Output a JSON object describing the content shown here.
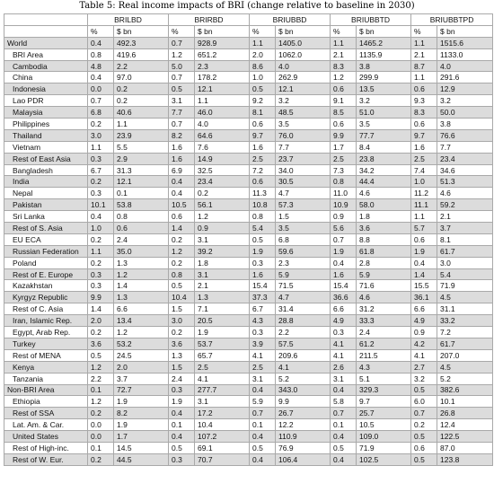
{
  "caption": "Table 5: Real income impacts of BRI (change relative to baseline in 2030)",
  "scenarios": [
    "BRILBD",
    "BRIRBD",
    "BRIUBBD",
    "BRIUBBTD",
    "BRIUBBTPD"
  ],
  "units": [
    "%",
    "$ bn"
  ],
  "rows": [
    {
      "region": "World",
      "indent": false,
      "v": [
        "0.4",
        "492.3",
        "0.7",
        "928.9",
        "1.1",
        "1405.0",
        "1.1",
        "1465.2",
        "1.1",
        "1515.6"
      ]
    },
    {
      "region": "BRI Area",
      "indent": true,
      "v": [
        "0.8",
        "419.6",
        "1.2",
        "651.2",
        "2.0",
        "1062.0",
        "2.1",
        "1135.9",
        "2.1",
        "1133.0"
      ]
    },
    {
      "region": "Cambodia",
      "indent": true,
      "v": [
        "4.8",
        "2.2",
        "5.0",
        "2.3",
        "8.6",
        "4.0",
        "8.3",
        "3.8",
        "8.7",
        "4.0"
      ]
    },
    {
      "region": "China",
      "indent": true,
      "v": [
        "0.4",
        "97.0",
        "0.7",
        "178.2",
        "1.0",
        "262.9",
        "1.2",
        "299.9",
        "1.1",
        "291.6"
      ]
    },
    {
      "region": "Indonesia",
      "indent": true,
      "v": [
        "0.0",
        "0.2",
        "0.5",
        "12.1",
        "0.5",
        "12.1",
        "0.6",
        "13.5",
        "0.6",
        "12.9"
      ]
    },
    {
      "region": "Lao PDR",
      "indent": true,
      "v": [
        "0.7",
        "0.2",
        "3.1",
        "1.1",
        "9.2",
        "3.2",
        "9.1",
        "3.2",
        "9.3",
        "3.2"
      ]
    },
    {
      "region": "Malaysia",
      "indent": true,
      "v": [
        "6.8",
        "40.6",
        "7.7",
        "46.0",
        "8.1",
        "48.5",
        "8.5",
        "51.0",
        "8.3",
        "50.0"
      ]
    },
    {
      "region": "Philippines",
      "indent": true,
      "v": [
        "0.2",
        "1.1",
        "0.7",
        "4.0",
        "0.6",
        "3.5",
        "0.6",
        "3.5",
        "0.6",
        "3.8"
      ]
    },
    {
      "region": "Thailand",
      "indent": true,
      "v": [
        "3.0",
        "23.9",
        "8.2",
        "64.6",
        "9.7",
        "76.0",
        "9.9",
        "77.7",
        "9.7",
        "76.6"
      ]
    },
    {
      "region": "Vietnam",
      "indent": true,
      "v": [
        "1.1",
        "5.5",
        "1.6",
        "7.6",
        "1.6",
        "7.7",
        "1.7",
        "8.4",
        "1.6",
        "7.7"
      ]
    },
    {
      "region": "Rest of East Asia",
      "indent": true,
      "v": [
        "0.3",
        "2.9",
        "1.6",
        "14.9",
        "2.5",
        "23.7",
        "2.5",
        "23.8",
        "2.5",
        "23.4"
      ]
    },
    {
      "region": "Bangladesh",
      "indent": true,
      "v": [
        "6.7",
        "31.3",
        "6.9",
        "32.5",
        "7.2",
        "34.0",
        "7.3",
        "34.2",
        "7.4",
        "34.6"
      ]
    },
    {
      "region": "India",
      "indent": true,
      "v": [
        "0.2",
        "12.1",
        "0.4",
        "23.4",
        "0.6",
        "30.5",
        "0.8",
        "44.4",
        "1.0",
        "51.3"
      ]
    },
    {
      "region": "Nepal",
      "indent": true,
      "v": [
        "0.3",
        "0.1",
        "0.4",
        "0.2",
        "11.3",
        "4.7",
        "11.0",
        "4.6",
        "11.2",
        "4.6"
      ]
    },
    {
      "region": "Pakistan",
      "indent": true,
      "v": [
        "10.1",
        "53.8",
        "10.5",
        "56.1",
        "10.8",
        "57.3",
        "10.9",
        "58.0",
        "11.1",
        "59.2"
      ]
    },
    {
      "region": "Sri Lanka",
      "indent": true,
      "v": [
        "0.4",
        "0.8",
        "0.6",
        "1.2",
        "0.8",
        "1.5",
        "0.9",
        "1.8",
        "1.1",
        "2.1"
      ]
    },
    {
      "region": "Rest of S. Asia",
      "indent": true,
      "v": [
        "1.0",
        "0.6",
        "1.4",
        "0.9",
        "5.4",
        "3.5",
        "5.6",
        "3.6",
        "5.7",
        "3.7"
      ]
    },
    {
      "region": "EU ECA",
      "indent": true,
      "v": [
        "0.2",
        "2.4",
        "0.2",
        "3.1",
        "0.5",
        "6.8",
        "0.7",
        "8.8",
        "0.6",
        "8.1"
      ]
    },
    {
      "region": "Russian Federation",
      "indent": true,
      "v": [
        "1.1",
        "35.0",
        "1.2",
        "39.2",
        "1.9",
        "59.6",
        "1.9",
        "61.8",
        "1.9",
        "61.7"
      ]
    },
    {
      "region": "Poland",
      "indent": true,
      "v": [
        "0.2",
        "1.3",
        "0.2",
        "1.8",
        "0.3",
        "2.3",
        "0.4",
        "2.8",
        "0.4",
        "3.0"
      ]
    },
    {
      "region": "Rest of E. Europe",
      "indent": true,
      "v": [
        "0.3",
        "1.2",
        "0.8",
        "3.1",
        "1.6",
        "5.9",
        "1.6",
        "5.9",
        "1.4",
        "5.4"
      ]
    },
    {
      "region": "Kazakhstan",
      "indent": true,
      "v": [
        "0.3",
        "1.4",
        "0.5",
        "2.1",
        "15.4",
        "71.5",
        "15.4",
        "71.6",
        "15.5",
        "71.9"
      ]
    },
    {
      "region": "Kyrgyz Republic",
      "indent": true,
      "v": [
        "9.9",
        "1.3",
        "10.4",
        "1.3",
        "37.3",
        "4.7",
        "36.6",
        "4.6",
        "36.1",
        "4.5"
      ]
    },
    {
      "region": "Rest of C. Asia",
      "indent": true,
      "v": [
        "1.4",
        "6.6",
        "1.5",
        "7.1",
        "6.7",
        "31.4",
        "6.6",
        "31.2",
        "6.6",
        "31.1"
      ]
    },
    {
      "region": "Iran, Islamic Rep.",
      "indent": true,
      "v": [
        "2.0",
        "13.4",
        "3.0",
        "20.5",
        "4.3",
        "28.8",
        "4.9",
        "33.3",
        "4.9",
        "33.2"
      ]
    },
    {
      "region": "Egypt, Arab Rep.",
      "indent": true,
      "v": [
        "0.2",
        "1.2",
        "0.2",
        "1.9",
        "0.3",
        "2.2",
        "0.3",
        "2.4",
        "0.9",
        "7.2"
      ]
    },
    {
      "region": "Turkey",
      "indent": true,
      "v": [
        "3.6",
        "53.2",
        "3.6",
        "53.7",
        "3.9",
        "57.5",
        "4.1",
        "61.2",
        "4.2",
        "61.7"
      ]
    },
    {
      "region": "Rest of MENA",
      "indent": true,
      "v": [
        "0.5",
        "24.5",
        "1.3",
        "65.7",
        "4.1",
        "209.6",
        "4.1",
        "211.5",
        "4.1",
        "207.0"
      ]
    },
    {
      "region": "Kenya",
      "indent": true,
      "v": [
        "1.2",
        "2.0",
        "1.5",
        "2.5",
        "2.5",
        "4.1",
        "2.6",
        "4.3",
        "2.7",
        "4.5"
      ]
    },
    {
      "region": "Tanzania",
      "indent": true,
      "v": [
        "2.2",
        "3.7",
        "2.4",
        "4.1",
        "3.1",
        "5.2",
        "3.1",
        "5.1",
        "3.2",
        "5.2"
      ]
    },
    {
      "region": "Non-BRI Area",
      "indent": false,
      "v": [
        "0.1",
        "72.7",
        "0.3",
        "277.7",
        "0.4",
        "343.0",
        "0.4",
        "329.3",
        "0.5",
        "382.6"
      ]
    },
    {
      "region": "Ethiopia",
      "indent": true,
      "v": [
        "1.2",
        "1.9",
        "1.9",
        "3.1",
        "5.9",
        "9.9",
        "5.8",
        "9.7",
        "6.0",
        "10.1"
      ]
    },
    {
      "region": "Rest of SSA",
      "indent": true,
      "v": [
        "0.2",
        "8.2",
        "0.4",
        "17.2",
        "0.7",
        "26.7",
        "0.7",
        "25.7",
        "0.7",
        "26.8"
      ]
    },
    {
      "region": "Lat. Am. & Car.",
      "indent": true,
      "v": [
        "0.0",
        "1.9",
        "0.1",
        "10.4",
        "0.1",
        "12.2",
        "0.1",
        "10.5",
        "0.2",
        "12.4"
      ]
    },
    {
      "region": "United States",
      "indent": true,
      "v": [
        "0.0",
        "1.7",
        "0.4",
        "107.2",
        "0.4",
        "110.9",
        "0.4",
        "109.0",
        "0.5",
        "122.5"
      ]
    },
    {
      "region": "Rest of High-inc.",
      "indent": true,
      "v": [
        "0.1",
        "14.5",
        "0.5",
        "69.1",
        "0.5",
        "76.9",
        "0.5",
        "71.9",
        "0.6",
        "87.0"
      ]
    },
    {
      "region": "Rest of W. Eur.",
      "indent": true,
      "v": [
        "0.2",
        "44.5",
        "0.3",
        "70.7",
        "0.4",
        "106.4",
        "0.4",
        "102.5",
        "0.5",
        "123.8"
      ]
    }
  ]
}
